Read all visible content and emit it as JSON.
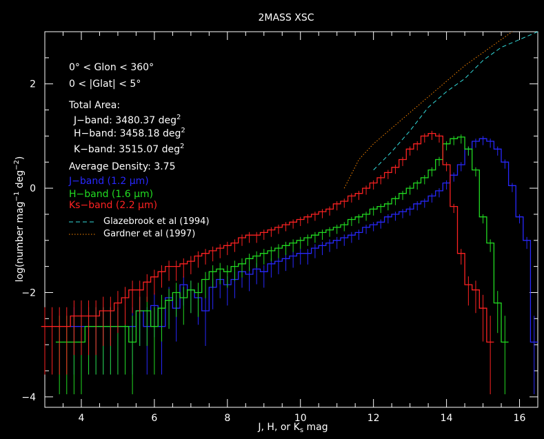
{
  "chart_data": {
    "type": "line",
    "title": "2MASS XSC",
    "xlabel": "J, H, or K",
    "xlabel_sub": "s",
    "xlabel_tail": " mag",
    "ylabel": "log(number mag",
    "ylabel_sup1": "−1",
    "ylabel_mid": " deg",
    "ylabel_sup2": "−2",
    "ylabel_tail": ")",
    "xlim": [
      3.0,
      16.5
    ],
    "ylim": [
      -4.2,
      3.0
    ],
    "xticks": [
      4,
      6,
      8,
      10,
      12,
      14,
      16
    ],
    "yticks": [
      -4,
      -2,
      0,
      2
    ],
    "annotations": {
      "glon": "0° < Glon < 360°",
      "glat": "0 < |Glat| < 5°",
      "total_area": "Total Area:",
      "j_area": "J−band: 3480.37 deg",
      "h_area": "H−band: 3458.18 deg",
      "k_area": "K−band: 3515.07 deg",
      "area_sup": "2",
      "density": "Average Density: 3.75"
    },
    "series": [
      {
        "name": "J−band (1.2 μm)",
        "color": "#2828ff",
        "style": "histogram",
        "bins": [
          [
            3.8,
            -2.65
          ],
          [
            4.0,
            -2.65
          ],
          [
            4.2,
            -2.65
          ],
          [
            4.4,
            -2.65
          ],
          [
            4.6,
            -2.65
          ],
          [
            4.8,
            -2.65
          ],
          [
            5.0,
            -2.65
          ],
          [
            5.2,
            -2.65
          ],
          [
            5.4,
            -2.65
          ],
          [
            5.6,
            -2.35
          ],
          [
            5.8,
            -2.65
          ],
          [
            6.0,
            -2.25
          ],
          [
            6.2,
            -2.65
          ],
          [
            6.4,
            -2.1
          ],
          [
            6.6,
            -2.3
          ],
          [
            6.8,
            -1.85
          ],
          [
            7.0,
            -1.95
          ],
          [
            7.2,
            -2.1
          ],
          [
            7.4,
            -2.35
          ],
          [
            7.6,
            -1.9
          ],
          [
            7.8,
            -1.75
          ],
          [
            8.0,
            -1.85
          ],
          [
            8.2,
            -1.75
          ],
          [
            8.4,
            -1.6
          ],
          [
            8.6,
            -1.65
          ],
          [
            8.8,
            -1.55
          ],
          [
            9.0,
            -1.6
          ],
          [
            9.2,
            -1.45
          ],
          [
            9.4,
            -1.4
          ],
          [
            9.6,
            -1.35
          ],
          [
            9.8,
            -1.3
          ],
          [
            10.0,
            -1.25
          ],
          [
            10.2,
            -1.25
          ],
          [
            10.4,
            -1.15
          ],
          [
            10.6,
            -1.1
          ],
          [
            10.8,
            -1.05
          ],
          [
            11.0,
            -1.0
          ],
          [
            11.2,
            -0.95
          ],
          [
            11.4,
            -0.9
          ],
          [
            11.6,
            -0.85
          ],
          [
            11.8,
            -0.75
          ],
          [
            12.0,
            -0.7
          ],
          [
            12.2,
            -0.65
          ],
          [
            12.4,
            -0.55
          ],
          [
            12.6,
            -0.5
          ],
          [
            12.8,
            -0.45
          ],
          [
            13.0,
            -0.4
          ],
          [
            13.2,
            -0.3
          ],
          [
            13.4,
            -0.25
          ],
          [
            13.6,
            -0.15
          ],
          [
            13.8,
            -0.05
          ],
          [
            14.0,
            0.1
          ],
          [
            14.2,
            0.25
          ],
          [
            14.4,
            0.45
          ],
          [
            14.6,
            0.75
          ],
          [
            14.8,
            0.9
          ],
          [
            15.0,
            0.95
          ],
          [
            15.2,
            0.9
          ],
          [
            15.4,
            0.75
          ],
          [
            15.6,
            0.5
          ],
          [
            15.8,
            0.05
          ],
          [
            16.0,
            -0.55
          ],
          [
            16.2,
            -1.0
          ],
          [
            16.4,
            -2.95
          ]
        ]
      },
      {
        "name": "H−band (1.6 μm)",
        "color": "#22dd22",
        "style": "histogram",
        "bins": [
          [
            3.4,
            -2.95
          ],
          [
            3.6,
            -2.95
          ],
          [
            3.8,
            -2.95
          ],
          [
            4.0,
            -2.95
          ],
          [
            4.2,
            -2.65
          ],
          [
            4.4,
            -2.65
          ],
          [
            4.6,
            -2.65
          ],
          [
            4.8,
            -2.65
          ],
          [
            5.0,
            -2.65
          ],
          [
            5.2,
            -2.65
          ],
          [
            5.4,
            -2.95
          ],
          [
            5.6,
            -2.35
          ],
          [
            5.8,
            -2.35
          ],
          [
            6.0,
            -2.65
          ],
          [
            6.2,
            -2.3
          ],
          [
            6.4,
            -2.15
          ],
          [
            6.6,
            -2.0
          ],
          [
            6.8,
            -2.1
          ],
          [
            7.0,
            -1.95
          ],
          [
            7.2,
            -2.0
          ],
          [
            7.4,
            -1.75
          ],
          [
            7.6,
            -1.6
          ],
          [
            7.8,
            -1.55
          ],
          [
            8.0,
            -1.6
          ],
          [
            8.2,
            -1.5
          ],
          [
            8.4,
            -1.45
          ],
          [
            8.6,
            -1.35
          ],
          [
            8.8,
            -1.3
          ],
          [
            9.0,
            -1.25
          ],
          [
            9.2,
            -1.2
          ],
          [
            9.4,
            -1.15
          ],
          [
            9.6,
            -1.1
          ],
          [
            9.8,
            -1.05
          ],
          [
            10.0,
            -1.0
          ],
          [
            10.2,
            -0.95
          ],
          [
            10.4,
            -0.9
          ],
          [
            10.6,
            -0.85
          ],
          [
            10.8,
            -0.8
          ],
          [
            11.0,
            -0.75
          ],
          [
            11.2,
            -0.7
          ],
          [
            11.4,
            -0.6
          ],
          [
            11.6,
            -0.55
          ],
          [
            11.8,
            -0.5
          ],
          [
            12.0,
            -0.4
          ],
          [
            12.2,
            -0.35
          ],
          [
            12.4,
            -0.3
          ],
          [
            12.6,
            -0.2
          ],
          [
            12.8,
            -0.1
          ],
          [
            13.0,
            0.0
          ],
          [
            13.2,
            0.1
          ],
          [
            13.4,
            0.2
          ],
          [
            13.6,
            0.35
          ],
          [
            13.8,
            0.55
          ],
          [
            14.0,
            0.85
          ],
          [
            14.2,
            0.95
          ],
          [
            14.4,
            0.98
          ],
          [
            14.6,
            0.75
          ],
          [
            14.8,
            0.35
          ],
          [
            15.0,
            -0.55
          ],
          [
            15.2,
            -1.05
          ],
          [
            15.4,
            -2.2
          ],
          [
            15.6,
            -2.95
          ]
        ]
      },
      {
        "name": "Ks−band (2.2 μm)",
        "color": "#ff2222",
        "style": "histogram",
        "bins": [
          [
            3.0,
            -2.65
          ],
          [
            3.2,
            -2.65
          ],
          [
            3.4,
            -2.65
          ],
          [
            3.6,
            -2.65
          ],
          [
            3.8,
            -2.45
          ],
          [
            4.0,
            -2.45
          ],
          [
            4.2,
            -2.45
          ],
          [
            4.4,
            -2.45
          ],
          [
            4.6,
            -2.35
          ],
          [
            4.8,
            -2.35
          ],
          [
            5.0,
            -2.2
          ],
          [
            5.2,
            -2.1
          ],
          [
            5.4,
            -1.95
          ],
          [
            5.6,
            -1.95
          ],
          [
            5.8,
            -1.8
          ],
          [
            6.0,
            -1.7
          ],
          [
            6.2,
            -1.6
          ],
          [
            6.4,
            -1.5
          ],
          [
            6.6,
            -1.5
          ],
          [
            6.8,
            -1.45
          ],
          [
            7.0,
            -1.4
          ],
          [
            7.2,
            -1.3
          ],
          [
            7.4,
            -1.25
          ],
          [
            7.6,
            -1.2
          ],
          [
            7.8,
            -1.15
          ],
          [
            8.0,
            -1.1
          ],
          [
            8.2,
            -1.05
          ],
          [
            8.4,
            -0.95
          ],
          [
            8.6,
            -0.9
          ],
          [
            8.8,
            -0.9
          ],
          [
            9.0,
            -0.85
          ],
          [
            9.2,
            -0.8
          ],
          [
            9.4,
            -0.75
          ],
          [
            9.6,
            -0.7
          ],
          [
            9.8,
            -0.65
          ],
          [
            10.0,
            -0.6
          ],
          [
            10.2,
            -0.55
          ],
          [
            10.4,
            -0.5
          ],
          [
            10.6,
            -0.45
          ],
          [
            10.8,
            -0.4
          ],
          [
            11.0,
            -0.3
          ],
          [
            11.2,
            -0.25
          ],
          [
            11.4,
            -0.15
          ],
          [
            11.6,
            -0.1
          ],
          [
            11.8,
            0.0
          ],
          [
            12.0,
            0.1
          ],
          [
            12.2,
            0.2
          ],
          [
            12.4,
            0.3
          ],
          [
            12.6,
            0.4
          ],
          [
            12.8,
            0.55
          ],
          [
            13.0,
            0.75
          ],
          [
            13.2,
            0.85
          ],
          [
            13.4,
            1.0
          ],
          [
            13.6,
            1.05
          ],
          [
            13.8,
            1.0
          ],
          [
            14.0,
            0.45
          ],
          [
            14.2,
            -0.35
          ],
          [
            14.4,
            -1.25
          ],
          [
            14.6,
            -1.85
          ],
          [
            14.8,
            -1.95
          ],
          [
            15.0,
            -2.3
          ],
          [
            15.2,
            -2.95
          ]
        ]
      },
      {
        "name": "Glazebrook et al (1994)",
        "color": "#33dddd",
        "style": "dashed",
        "points": [
          [
            12.0,
            0.35
          ],
          [
            12.5,
            0.7
          ],
          [
            13.0,
            1.1
          ],
          [
            13.5,
            1.55
          ],
          [
            14.0,
            1.85
          ],
          [
            14.5,
            2.1
          ],
          [
            15.0,
            2.45
          ],
          [
            15.5,
            2.7
          ],
          [
            16.0,
            2.85
          ],
          [
            16.5,
            3.0
          ]
        ]
      },
      {
        "name": "Gardner et al (1997)",
        "color": "#ff8800",
        "style": "dotted",
        "points": [
          [
            11.2,
            0.0
          ],
          [
            11.6,
            0.55
          ],
          [
            12.0,
            0.85
          ],
          [
            12.5,
            1.15
          ],
          [
            13.0,
            1.45
          ],
          [
            13.5,
            1.75
          ],
          [
            14.0,
            2.05
          ],
          [
            14.5,
            2.35
          ],
          [
            15.0,
            2.6
          ],
          [
            15.5,
            2.85
          ],
          [
            15.8,
            3.0
          ]
        ]
      }
    ]
  }
}
